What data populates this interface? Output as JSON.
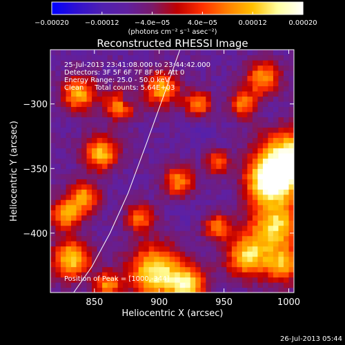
{
  "chart_data": {
    "type": "heatmap",
    "title": "Reconstructed RHESSI Image",
    "xlabel": "Heliocentric X (arcsec)",
    "ylabel": "Heliocentric Y (arcsec)",
    "xlim": [
      816,
      1004
    ],
    "ylim": [
      -446,
      -258
    ],
    "x_ticks": [
      850,
      900,
      950,
      1000
    ],
    "y_ticks": [
      -300,
      -350,
      -400
    ],
    "colorbar": {
      "range": [
        -0.0002,
        0.0002
      ],
      "ticks": [
        -0.0002,
        -0.00012,
        -4e-05,
        4e-05,
        0.00012,
        0.0002
      ],
      "tick_labels": [
        "−0.00020",
        "−0.00012",
        "−4.0e−05",
        "4.0e−05",
        "0.00012",
        "0.00020"
      ],
      "unit_label": "(photons cm⁻² s⁻¹ asec⁻²)",
      "colormap": [
        "#0000ff",
        "#3010d0",
        "#5020b0",
        "#6020a0",
        "#7a1a6a",
        "#c00000",
        "#ff3000",
        "#ff8000",
        "#ffc000",
        "#ffffa0",
        "#ffffff"
      ]
    },
    "annotations": [
      "25-Jul-2013 23:41:08.000 to 23:44:42.000",
      "Detectors: 3F 5F 6F 7F 8F 9F, Att 0",
      "Energy Range: 25.0 - 50.0 keV",
      "Clean     Total counts: 5.64E+03"
    ],
    "peak_label": "Position of Peak = [1000,-344]",
    "limb_curve": [
      [
        916,
        -258
      ],
      [
        904,
        -292
      ],
      [
        890,
        -331
      ],
      [
        876,
        -369
      ],
      [
        862,
        -400
      ],
      [
        848,
        -426
      ],
      [
        834,
        -446
      ]
    ],
    "hot_regions": [
      {
        "x": 1000,
        "y": -344,
        "v": 0.0002,
        "r": 16
      },
      {
        "x": 985,
        "y": -360,
        "v": 0.00016,
        "r": 12
      },
      {
        "x": 990,
        "y": -395,
        "v": 0.00014,
        "r": 14
      },
      {
        "x": 968,
        "y": -418,
        "v": 0.00013,
        "r": 11
      },
      {
        "x": 897,
        "y": -430,
        "v": 0.00016,
        "r": 14
      },
      {
        "x": 922,
        "y": -440,
        "v": 0.00013,
        "r": 10
      },
      {
        "x": 832,
        "y": -420,
        "v": 0.00014,
        "r": 10
      },
      {
        "x": 828,
        "y": -385,
        "v": 0.00011,
        "r": 8
      },
      {
        "x": 842,
        "y": -372,
        "v": 0.0001,
        "r": 8
      },
      {
        "x": 855,
        "y": -338,
        "v": 0.00012,
        "r": 9
      },
      {
        "x": 838,
        "y": -292,
        "v": 0.00011,
        "r": 9
      },
      {
        "x": 870,
        "y": -300,
        "v": 0.0001,
        "r": 8
      },
      {
        "x": 902,
        "y": -288,
        "v": 0.00011,
        "r": 9
      },
      {
        "x": 930,
        "y": -300,
        "v": 9e-05,
        "r": 7
      },
      {
        "x": 980,
        "y": -280,
        "v": 0.0001,
        "r": 9
      },
      {
        "x": 965,
        "y": -300,
        "v": 8e-05,
        "r": 7
      },
      {
        "x": 915,
        "y": -360,
        "v": 9e-05,
        "r": 8
      },
      {
        "x": 885,
        "y": -388,
        "v": 8e-05,
        "r": 7
      },
      {
        "x": 945,
        "y": -395,
        "v": 8e-05,
        "r": 7
      },
      {
        "x": 995,
        "y": -425,
        "v": 0.0001,
        "r": 9
      },
      {
        "x": 860,
        "y": -440,
        "v": 9e-05,
        "r": 7
      },
      {
        "x": 945,
        "y": -345,
        "v": 7e-05,
        "r": 6
      }
    ],
    "cold_regions": [
      {
        "x": 875,
        "y": -296,
        "v": -0.00018,
        "r": 4
      },
      {
        "x": 930,
        "y": -320,
        "v": -0.0001,
        "r": 8
      },
      {
        "x": 985,
        "y": -305,
        "v": -9e-05,
        "r": 7
      },
      {
        "x": 920,
        "y": -385,
        "v": -9e-05,
        "r": 7
      },
      {
        "x": 865,
        "y": -360,
        "v": -8e-05,
        "r": 6
      },
      {
        "x": 960,
        "y": -335,
        "v": -7e-05,
        "r": 6
      },
      {
        "x": 950,
        "y": -375,
        "v": -8e-05,
        "r": 7
      }
    ]
  },
  "footer": {
    "timestamp": "26-Jul-2013 05:44"
  }
}
